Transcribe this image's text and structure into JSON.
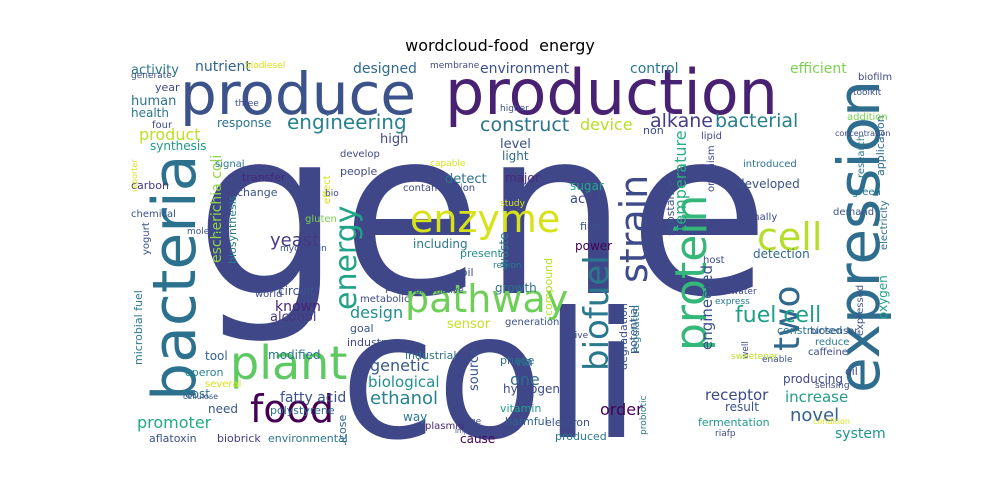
{
  "chart_data": {
    "type": "wordcloud",
    "title": "wordcloud-food  energy",
    "words": [
      {
        "text": "gene",
        "color": "#3f4789"
      },
      {
        "text": "coli",
        "color": "#3f4789"
      },
      {
        "text": "production",
        "color": "#482173"
      },
      {
        "text": "produce",
        "color": "#3b528b"
      },
      {
        "text": "bacteria",
        "color": "#2c728e"
      },
      {
        "text": "expression",
        "color": "#2e6d8e"
      },
      {
        "text": "protein",
        "color": "#35b779"
      },
      {
        "text": "plant",
        "color": "#5ec962"
      },
      {
        "text": "food",
        "color": "#440154"
      },
      {
        "text": "pathway",
        "color": "#6ece58"
      },
      {
        "text": "enzyme",
        "color": "#d8e219"
      },
      {
        "text": "cell",
        "color": "#b5de2b"
      },
      {
        "text": "strain",
        "color": "#3e4a89"
      },
      {
        "text": "biofuel",
        "color": "#2a788e"
      },
      {
        "text": "energy",
        "color": "#20a386"
      },
      {
        "text": "two",
        "color": "#31688e"
      },
      {
        "text": "fuel cell",
        "color": "#1fa088"
      },
      {
        "text": "engineering",
        "color": "#26828e"
      },
      {
        "text": "construct",
        "color": "#2c728e"
      },
      {
        "text": "bacterial",
        "color": "#277f8e"
      },
      {
        "text": "alkane",
        "color": "#433e85"
      },
      {
        "text": "escherichia coli",
        "color": "#8fd744"
      },
      {
        "text": "yeast",
        "color": "#443983"
      },
      {
        "text": "ethanol",
        "color": "#25848e"
      },
      {
        "text": "promoter",
        "color": "#23a983"
      },
      {
        "text": "product",
        "color": "#bddf26"
      },
      {
        "text": "design",
        "color": "#228d8d"
      },
      {
        "text": "device",
        "color": "#b8de29"
      },
      {
        "text": "temperature",
        "color": "#29af7f"
      },
      {
        "text": "engineered",
        "color": "#3b528b"
      },
      {
        "text": "one",
        "color": "#2f6c8e"
      },
      {
        "text": "order",
        "color": "#440154"
      },
      {
        "text": "receptor",
        "color": "#3e4989"
      },
      {
        "text": "increase",
        "color": "#1f9e89"
      },
      {
        "text": "novel",
        "color": "#355f8d"
      },
      {
        "text": "system",
        "color": "#1f968b"
      },
      {
        "text": "genetic",
        "color": "#38598c"
      },
      {
        "text": "biological",
        "color": "#21918c"
      },
      {
        "text": "fatty acid",
        "color": "#3b528b"
      },
      {
        "text": "known",
        "color": "#482475"
      },
      {
        "text": "alcohol",
        "color": "#453781"
      },
      {
        "text": "circuit",
        "color": "#3b528b"
      },
      {
        "text": "sensor",
        "color": "#c2df23"
      },
      {
        "text": "source",
        "color": "#39558c"
      },
      {
        "text": "nutrient",
        "color": "#34618d"
      },
      {
        "text": "environment",
        "color": "#3b518b"
      },
      {
        "text": "efficient",
        "color": "#7ad151"
      },
      {
        "text": "designed",
        "color": "#31688e"
      },
      {
        "text": "control",
        "color": "#2a788e"
      },
      {
        "text": "activity",
        "color": "#2a778e"
      },
      {
        "text": "human",
        "color": "#2c738e"
      },
      {
        "text": "health",
        "color": "#2a788e"
      },
      {
        "text": "synthesis",
        "color": "#1f988b"
      },
      {
        "text": "response",
        "color": "#2c728e"
      },
      {
        "text": "high",
        "color": "#3f4788"
      },
      {
        "text": "level",
        "color": "#3c508b"
      },
      {
        "text": "light",
        "color": "#2f6b8e"
      },
      {
        "text": "detect",
        "color": "#2d718e"
      },
      {
        "text": "major",
        "color": "#482878"
      },
      {
        "text": "acid",
        "color": "#414487"
      },
      {
        "text": "sugar",
        "color": "#22a785"
      },
      {
        "text": "power",
        "color": "#440154"
      },
      {
        "text": "compound",
        "color": "#b5de2b"
      },
      {
        "text": "including",
        "color": "#2a788e"
      },
      {
        "text": "present",
        "color": "#21918c"
      },
      {
        "text": "waste",
        "color": "#2c738e"
      },
      {
        "text": "growth",
        "color": "#2c728e"
      },
      {
        "text": "via",
        "color": "#2e6e8e"
      },
      {
        "text": "hydrogen",
        "color": "#3e4989"
      },
      {
        "text": "vitamin",
        "color": "#1fa187"
      },
      {
        "text": "harmful",
        "color": "#33638d"
      },
      {
        "text": "phage",
        "color": "#2d708e"
      },
      {
        "text": "electron",
        "color": "#3b528b"
      },
      {
        "text": "cause",
        "color": "#440154"
      },
      {
        "text": "produced",
        "color": "#2a788e"
      },
      {
        "text": "way",
        "color": "#2a788e"
      },
      {
        "text": "glucose",
        "color": "#33638d"
      },
      {
        "text": "industry",
        "color": "#3e4a89"
      },
      {
        "text": "modified",
        "color": "#2b748e"
      },
      {
        "text": "tool",
        "color": "#35608d"
      },
      {
        "text": "operon",
        "color": "#26828e"
      },
      {
        "text": "cost",
        "color": "#2a788e"
      },
      {
        "text": "need",
        "color": "#39568c"
      },
      {
        "text": "polystyrene",
        "color": "#2d708e"
      },
      {
        "text": "aflatoxin",
        "color": "#3b528b"
      },
      {
        "text": "biobrick",
        "color": "#443983"
      },
      {
        "text": "environmental",
        "color": "#2a788e"
      },
      {
        "text": "industrial",
        "color": "#2c728e"
      },
      {
        "text": "plasmid",
        "color": "#482878"
      },
      {
        "text": "result",
        "color": "#3b528b"
      },
      {
        "text": "fermentation",
        "color": "#1f988b"
      },
      {
        "text": "producing",
        "color": "#3e4a89"
      },
      {
        "text": "constructed",
        "color": "#2a788e"
      },
      {
        "text": "developed",
        "color": "#3b528b"
      },
      {
        "text": "detection",
        "color": "#31688e"
      },
      {
        "text": "introduced",
        "color": "#2c728e"
      },
      {
        "text": "finally",
        "color": "#3e4a89"
      },
      {
        "text": "biosensor",
        "color": "#3b528b"
      },
      {
        "text": "caffeine",
        "color": "#3e4a89"
      },
      {
        "text": "reduce",
        "color": "#2a788e"
      },
      {
        "text": "oil",
        "color": "#3e4a89"
      },
      {
        "text": "oxygen",
        "color": "#1fa187"
      },
      {
        "text": "electricity",
        "color": "#2e6e8e"
      },
      {
        "text": "application",
        "color": "#2f6b8e"
      },
      {
        "text": "expressed",
        "color": "#3b528b"
      },
      {
        "text": "lipid",
        "color": "#3e4a89"
      },
      {
        "text": "organism",
        "color": "#3e4a89"
      },
      {
        "text": "degradation",
        "color": "#3b528b"
      },
      {
        "text": "potential",
        "color": "#3b528b"
      },
      {
        "text": "substance",
        "color": "#3b528b"
      },
      {
        "text": "regulated",
        "color": "#2a788e"
      },
      {
        "text": "probiotic",
        "color": "#2a788e"
      },
      {
        "text": "carbon",
        "color": "#443983"
      },
      {
        "text": "chemical",
        "color": "#3b528b"
      },
      {
        "text": "biosynthesis",
        "color": "#2a788e"
      },
      {
        "text": "molecule",
        "color": "#3b528b"
      },
      {
        "text": "transfer",
        "color": "#482878"
      },
      {
        "text": "change",
        "color": "#3b528b"
      },
      {
        "text": "signal",
        "color": "#2a788e"
      },
      {
        "text": "mycotoxin",
        "color": "#3e4a89"
      },
      {
        "text": "gluten",
        "color": "#7ad151"
      },
      {
        "text": "people",
        "color": "#3e4a89"
      },
      {
        "text": "develop",
        "color": "#3e4a89"
      },
      {
        "text": "contamination",
        "color": "#3e4a89"
      },
      {
        "text": "soil",
        "color": "#3e4a89"
      },
      {
        "text": "goal",
        "color": "#3b528b"
      },
      {
        "text": "metabolic",
        "color": "#3e4a89"
      },
      {
        "text": "world",
        "color": "#3e4a89"
      },
      {
        "text": "part",
        "color": "#3e4a89"
      },
      {
        "text": "generation",
        "color": "#3b528b"
      },
      {
        "text": "region",
        "color": "#2a788e"
      },
      {
        "text": "first",
        "color": "#3b528b"
      },
      {
        "text": "research",
        "color": "#2a788e"
      },
      {
        "text": "demand",
        "color": "#3b528b"
      },
      {
        "text": "green",
        "color": "#2a788e"
      },
      {
        "text": "host",
        "color": "#3e4a89"
      },
      {
        "text": "water",
        "color": "#3e4a89"
      },
      {
        "text": "express",
        "color": "#2a788e"
      },
      {
        "text": "well",
        "color": "#3e4a89"
      },
      {
        "text": "enable",
        "color": "#3b528b"
      },
      {
        "text": "sweetener",
        "color": "#bddf26"
      },
      {
        "text": "sensing",
        "color": "#3e4a89"
      },
      {
        "text": "microbial fuel",
        "color": "#2a788e"
      },
      {
        "text": "yogurt",
        "color": "#3b528b"
      },
      {
        "text": "biofilm",
        "color": "#3e4a89"
      },
      {
        "text": "toolkit",
        "color": "#3b528b"
      },
      {
        "text": "addition",
        "color": "#7ad151"
      },
      {
        "text": "biodiesel",
        "color": "#d8e219"
      },
      {
        "text": "membrane",
        "color": "#3e4a89"
      },
      {
        "text": "generate",
        "color": "#3b528b"
      },
      {
        "text": "year",
        "color": "#3e4a89"
      },
      {
        "text": "four",
        "color": "#3e4a89"
      },
      {
        "text": "three",
        "color": "#3e4a89"
      },
      {
        "text": "higher",
        "color": "#3b528b"
      },
      {
        "text": "non",
        "color": "#3e4a89"
      },
      {
        "text": "several",
        "color": "#d8e219"
      },
      {
        "text": "cellulose",
        "color": "#3b528b"
      },
      {
        "text": "study",
        "color": "#d8e219"
      },
      {
        "text": "capable",
        "color": "#d8e219"
      },
      {
        "text": "effect",
        "color": "#d8e219"
      },
      {
        "text": "alternative",
        "color": "#3e4a89"
      },
      {
        "text": "bio",
        "color": "#3e4a89"
      },
      {
        "text": "native",
        "color": "#3e4a89"
      },
      {
        "text": "riafp",
        "color": "#3e4a89"
      },
      {
        "text": "condition",
        "color": "#d8e219"
      },
      {
        "text": "concentration",
        "color": "#3e4a89"
      },
      {
        "text": "reporter",
        "color": "#d8e219"
      },
      {
        "text": "range",
        "color": "#3e4a89"
      },
      {
        "text": "important",
        "color": "#3e4a89"
      }
    ]
  }
}
